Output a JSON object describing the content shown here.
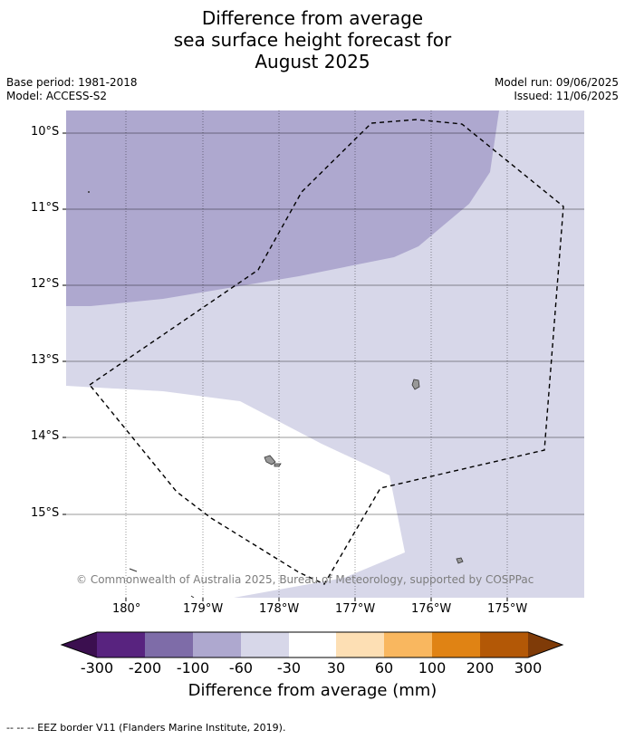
{
  "title": {
    "line1": "Difference from average",
    "line2": "sea surface height forecast for",
    "line3": "August 2025"
  },
  "meta": {
    "base_period": "Base period: 1981-2018",
    "model": "Model: ACCESS-S2",
    "model_run": "Model run: 09/06/2025",
    "issued": "Issued: 11/06/2025"
  },
  "map": {
    "lat_labels": [
      "10°S",
      "11°S",
      "12°S",
      "13°S",
      "14°S",
      "15°S"
    ],
    "lon_labels": [
      "180°",
      "179°W",
      "178°W",
      "177°W",
      "176°W",
      "175°W"
    ],
    "copyright": "© Commonwealth of Australia 2025, Bureau of Meteorology, supported by COSPPac"
  },
  "colorbar": {
    "title": "Difference from average (mm)",
    "ticks": [
      "-300",
      "-200",
      "-100",
      "-60",
      "-30",
      "30",
      "60",
      "100",
      "200",
      "300"
    ],
    "colors": [
      "#3b0f4f",
      "#58237f",
      "#7e6ca8",
      "#aea8cf",
      "#d7d7e9",
      "#ffffff",
      "#fddfb4",
      "#f9b75f",
      "#e08314",
      "#b35806",
      "#7f3b08"
    ]
  },
  "footnote": "--  --  -- EEZ border V11 (Flanders Marine Institute, 2019)."
}
